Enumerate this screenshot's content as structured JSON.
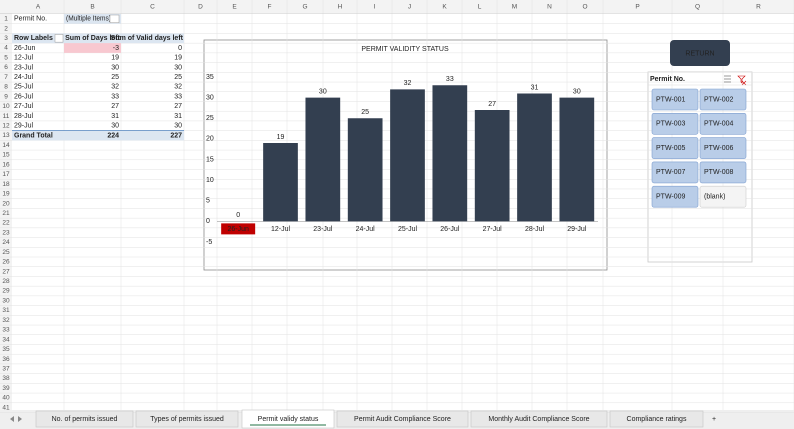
{
  "columns": [
    "A",
    "B",
    "C",
    "D",
    "E",
    "F",
    "G",
    "H",
    "I",
    "J",
    "K",
    "L",
    "M",
    "N",
    "O",
    "P",
    "Q",
    "R"
  ],
  "rows": [
    1,
    2,
    3,
    4,
    5,
    6,
    7,
    8,
    9,
    10,
    11,
    12,
    13,
    14,
    15,
    16,
    17,
    18,
    19,
    20,
    21,
    22,
    23,
    24,
    25,
    26,
    27,
    28,
    29,
    30,
    31,
    32,
    33,
    34,
    35,
    36,
    37,
    38,
    39,
    40,
    41
  ],
  "pivot": {
    "filter_label": "Permit No.",
    "filter_value": "(Multiple Items)",
    "headers": [
      "Row Labels",
      "Sum of Days left",
      "Sum of Valid days left"
    ],
    "rows": [
      [
        "26-Jun",
        -3,
        0
      ],
      [
        "12-Jul",
        19,
        19
      ],
      [
        "23-Jul",
        30,
        30
      ],
      [
        "24-Jul",
        25,
        25
      ],
      [
        "25-Jul",
        32,
        32
      ],
      [
        "26-Jul",
        33,
        33
      ],
      [
        "27-Jul",
        27,
        27
      ],
      [
        "28-Jul",
        31,
        31
      ],
      [
        "29-Jul",
        30,
        30
      ]
    ],
    "total": [
      "Grand Total",
      224,
      227
    ]
  },
  "chart_data": {
    "type": "bar",
    "title": "PERMIT VALIDITY STATUS",
    "categories": [
      "26-Jun",
      "12-Jul",
      "23-Jul",
      "24-Jul",
      "25-Jul",
      "26-Jul",
      "27-Jul",
      "28-Jul",
      "29-Jul"
    ],
    "values": [
      0,
      19,
      30,
      25,
      32,
      33,
      27,
      31,
      30
    ],
    "color": "#333f50",
    "ylim": [
      -5,
      35
    ],
    "yticks": [
      -5,
      0,
      5,
      10,
      15,
      20,
      25,
      30,
      35
    ],
    "grid": false,
    "label_highlight": {
      "index": 0,
      "color": "#c00000"
    }
  },
  "return_button": "RETURN",
  "slicer": {
    "title": "Permit No.",
    "items": [
      "PTW-001",
      "PTW-002",
      "PTW-003",
      "PTW-004",
      "PTW-005",
      "PTW-006",
      "PTW-007",
      "PTW-008",
      "PTW-009",
      "(blank)"
    ]
  },
  "tabs": [
    "No. of permits issued",
    "Types of permits issued",
    "Permit validy status",
    "Permit Audit Compliance Score",
    "Monthly Audit Compliance Score",
    "Compliance ratings"
  ],
  "active_tab": 2,
  "new_tab": "+"
}
